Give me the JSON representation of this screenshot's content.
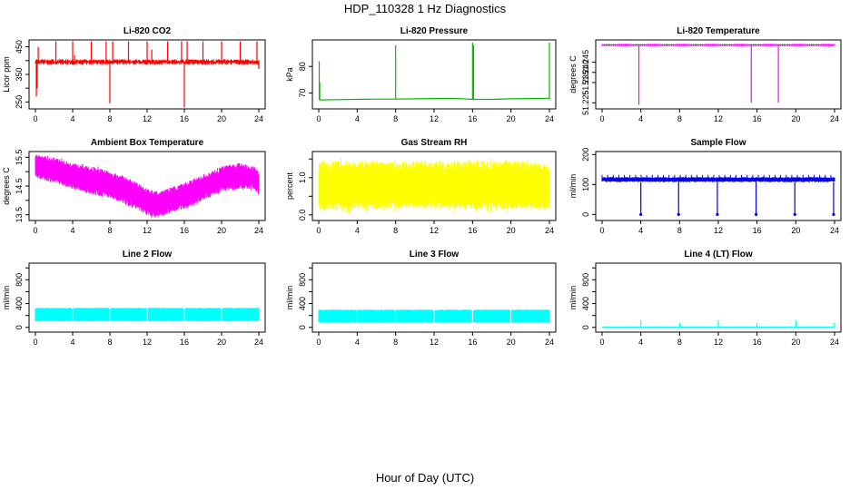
{
  "main_title": "HDP_110328  1 Hz Diagnostics",
  "x_label": "Hour of Day (UTC)",
  "colors": {
    "red": "#ff0000",
    "green": "#00bb00",
    "magenta": "#ff00ff",
    "yellow": "#ffff00",
    "blue": "#0000ee",
    "cyan": "#00ffff"
  },
  "chart_data": [
    {
      "type": "line",
      "title": "Li-820 CO2",
      "ylabel": "Licor ppm",
      "color": "#ff0000",
      "xlim": [
        0,
        24
      ],
      "xticks": [
        0,
        4,
        8,
        12,
        16,
        20,
        24
      ],
      "ylim": [
        225,
        475
      ],
      "yticks": [
        250,
        300,
        350,
        400,
        450
      ],
      "ytick_labels": [
        "250",
        "",
        "350",
        "",
        "450"
      ],
      "baseline": 395,
      "band": [
        385,
        405
      ],
      "spikes": [
        {
          "x": 0.1,
          "y": 270
        },
        {
          "x": 0.2,
          "y": 300
        },
        {
          "x": 0.3,
          "y": 450
        },
        {
          "x": 2.2,
          "y": 470
        },
        {
          "x": 4,
          "y": 470
        },
        {
          "x": 4.2,
          "y": 420
        },
        {
          "x": 6,
          "y": 470
        },
        {
          "x": 7.6,
          "y": 470
        },
        {
          "x": 8,
          "y": 245
        },
        {
          "x": 8.3,
          "y": 470
        },
        {
          "x": 10,
          "y": 470
        },
        {
          "x": 12,
          "y": 470
        },
        {
          "x": 12.5,
          "y": 440
        },
        {
          "x": 14.2,
          "y": 470
        },
        {
          "x": 15.7,
          "y": 470
        },
        {
          "x": 16,
          "y": 230
        },
        {
          "x": 16.3,
          "y": 470
        },
        {
          "x": 18,
          "y": 470
        },
        {
          "x": 20,
          "y": 470
        },
        {
          "x": 22,
          "y": 470
        },
        {
          "x": 23.8,
          "y": 470
        },
        {
          "x": 24,
          "y": 370
        }
      ]
    },
    {
      "type": "line",
      "title": "Li-820 Pressure",
      "ylabel": "kPa",
      "color": "#00bb00",
      "xlim": [
        0,
        24
      ],
      "xticks": [
        0,
        4,
        8,
        12,
        16,
        20,
        24
      ],
      "ylim": [
        64,
        90
      ],
      "yticks": [
        70,
        80
      ],
      "ytick_labels": [
        "70",
        "80"
      ],
      "x": [
        0,
        0.3,
        2,
        4,
        6,
        8,
        10,
        12,
        14,
        16,
        18,
        20,
        22,
        24
      ],
      "y": [
        67.6,
        67.4,
        67.5,
        67.6,
        67.7,
        67.7,
        67.8,
        67.9,
        68.0,
        67.6,
        67.6,
        67.8,
        67.9,
        68.0
      ],
      "spikes": [
        {
          "x": 0.05,
          "y": 82
        },
        {
          "x": 0.1,
          "y": 74
        },
        {
          "x": 8,
          "y": 88
        },
        {
          "x": 16,
          "y": 89
        },
        {
          "x": 16.1,
          "y": 88
        },
        {
          "x": 24,
          "y": 89
        }
      ]
    },
    {
      "type": "line",
      "title": "Li-820 Temperature",
      "ylabel": "degrees C",
      "color": "#ff00ff",
      "xlim": [
        0,
        24
      ],
      "xticks": [
        0,
        4,
        8,
        12,
        16,
        20,
        24
      ],
      "ylim": [
        51.222,
        51.256
      ],
      "yticks": [
        51.225,
        51.235,
        51.24,
        51.245
      ],
      "ytick_labels": [
        "51.225",
        "51.235",
        "51.240",
        "51.245"
      ],
      "baseline": 51.2535,
      "dips": [
        {
          "x": 3.8,
          "y": 51.224
        },
        {
          "x": 15.4,
          "y": 51.225
        },
        {
          "x": 18.2,
          "y": 51.225
        }
      ]
    },
    {
      "type": "area",
      "title": "Ambient Box Temperature",
      "ylabel": "degrees C",
      "color": "#ff00ff",
      "xlim": [
        0,
        24
      ],
      "xticks": [
        0,
        4,
        8,
        12,
        16,
        20,
        24
      ],
      "ylim": [
        13.3,
        15.7
      ],
      "yticks": [
        13.5,
        14,
        14.5,
        15,
        15.5
      ],
      "ytick_labels": [
        "13.5",
        "",
        "14.5",
        "",
        "15.5"
      ],
      "x": [
        0,
        2,
        4,
        6,
        8,
        10,
        12,
        13,
        14,
        16,
        18,
        20,
        22,
        23.5,
        24
      ],
      "upper": [
        15.6,
        15.5,
        15.3,
        15.2,
        15.0,
        14.8,
        14.4,
        14.3,
        14.4,
        14.6,
        14.9,
        15.2,
        15.3,
        15.2,
        15.0
      ],
      "lower": [
        14.8,
        14.6,
        14.4,
        14.2,
        14.1,
        13.8,
        13.5,
        13.4,
        13.5,
        13.7,
        14.0,
        14.3,
        14.4,
        14.4,
        14.2
      ]
    },
    {
      "type": "area",
      "title": "Gas Stream RH",
      "ylabel": "percent",
      "color": "#ffff00",
      "xlim": [
        0,
        24
      ],
      "xticks": [
        0,
        4,
        8,
        12,
        16,
        20,
        24
      ],
      "ylim": [
        -0.15,
        1.7
      ],
      "yticks": [
        0,
        0.5,
        1.0,
        1.5
      ],
      "ytick_labels": [
        "0.0",
        "",
        "1.0",
        ""
      ],
      "x": [
        0,
        4,
        8,
        12,
        16,
        20,
        24
      ],
      "upper": [
        1.45,
        1.45,
        1.45,
        1.45,
        1.45,
        1.45,
        1.4
      ],
      "lower": [
        0.1,
        0.15,
        0.15,
        0.15,
        0.15,
        0.15,
        0.15
      ]
    },
    {
      "type": "line",
      "title": "Sample Flow",
      "ylabel": "ml/min",
      "color": "#0000ee",
      "xlim": [
        0,
        24
      ],
      "xticks": [
        0,
        4,
        8,
        12,
        16,
        20,
        24
      ],
      "ylim": [
        -20,
        210
      ],
      "yticks": [
        0,
        100,
        200
      ],
      "ytick_labels": [
        "0",
        "100",
        "200"
      ],
      "band": [
        108,
        125
      ],
      "ticks_top": 132,
      "dips": [
        {
          "x": 4,
          "y": 0
        },
        {
          "x": 7.9,
          "y": 0
        },
        {
          "x": 11.9,
          "y": 0
        },
        {
          "x": 15.9,
          "y": 0
        },
        {
          "x": 19.9,
          "y": 0
        },
        {
          "x": 23.9,
          "y": 0
        }
      ]
    },
    {
      "type": "area",
      "title": "Line 2 Flow",
      "ylabel": "ml/min",
      "color": "#00ffff",
      "xlim": [
        0,
        24
      ],
      "xticks": [
        0,
        4,
        8,
        12,
        16,
        20,
        24
      ],
      "ylim": [
        -80,
        1080
      ],
      "yticks": [
        0,
        200,
        400,
        600,
        800,
        1000
      ],
      "ytick_labels": [
        "0",
        "",
        "400",
        "",
        "800",
        ""
      ],
      "band": [
        100,
        330
      ],
      "gaps": [
        4,
        8,
        12,
        16,
        20
      ]
    },
    {
      "type": "area",
      "title": "Line 3 Flow",
      "ylabel": "ml/min",
      "color": "#00ffff",
      "xlim": [
        0,
        24
      ],
      "xticks": [
        0,
        4,
        8,
        12,
        16,
        20,
        24
      ],
      "ylim": [
        -80,
        1080
      ],
      "yticks": [
        0,
        200,
        400,
        600,
        800,
        1000
      ],
      "ytick_labels": [
        "0",
        "",
        "400",
        "",
        "800",
        ""
      ],
      "band": [
        80,
        300
      ],
      "gaps": [
        4,
        8,
        12,
        16,
        20
      ]
    },
    {
      "type": "line",
      "title": "Line 4 (LT) Flow",
      "ylabel": "ml/min",
      "color": "#00ffff",
      "xlim": [
        0,
        24
      ],
      "xticks": [
        0,
        4,
        8,
        12,
        16,
        20,
        24
      ],
      "ylim": [
        -80,
        1080
      ],
      "yticks": [
        0,
        200,
        400,
        600,
        800,
        1000
      ],
      "ytick_labels": [
        "0",
        "",
        "400",
        "",
        "800",
        ""
      ],
      "baseline": 5,
      "spikes": [
        {
          "x": 4,
          "y": 120
        },
        {
          "x": 8,
          "y": 80
        },
        {
          "x": 12,
          "y": 120
        },
        {
          "x": 16,
          "y": 80
        },
        {
          "x": 20,
          "y": 120
        },
        {
          "x": 24,
          "y": 80
        }
      ]
    }
  ]
}
